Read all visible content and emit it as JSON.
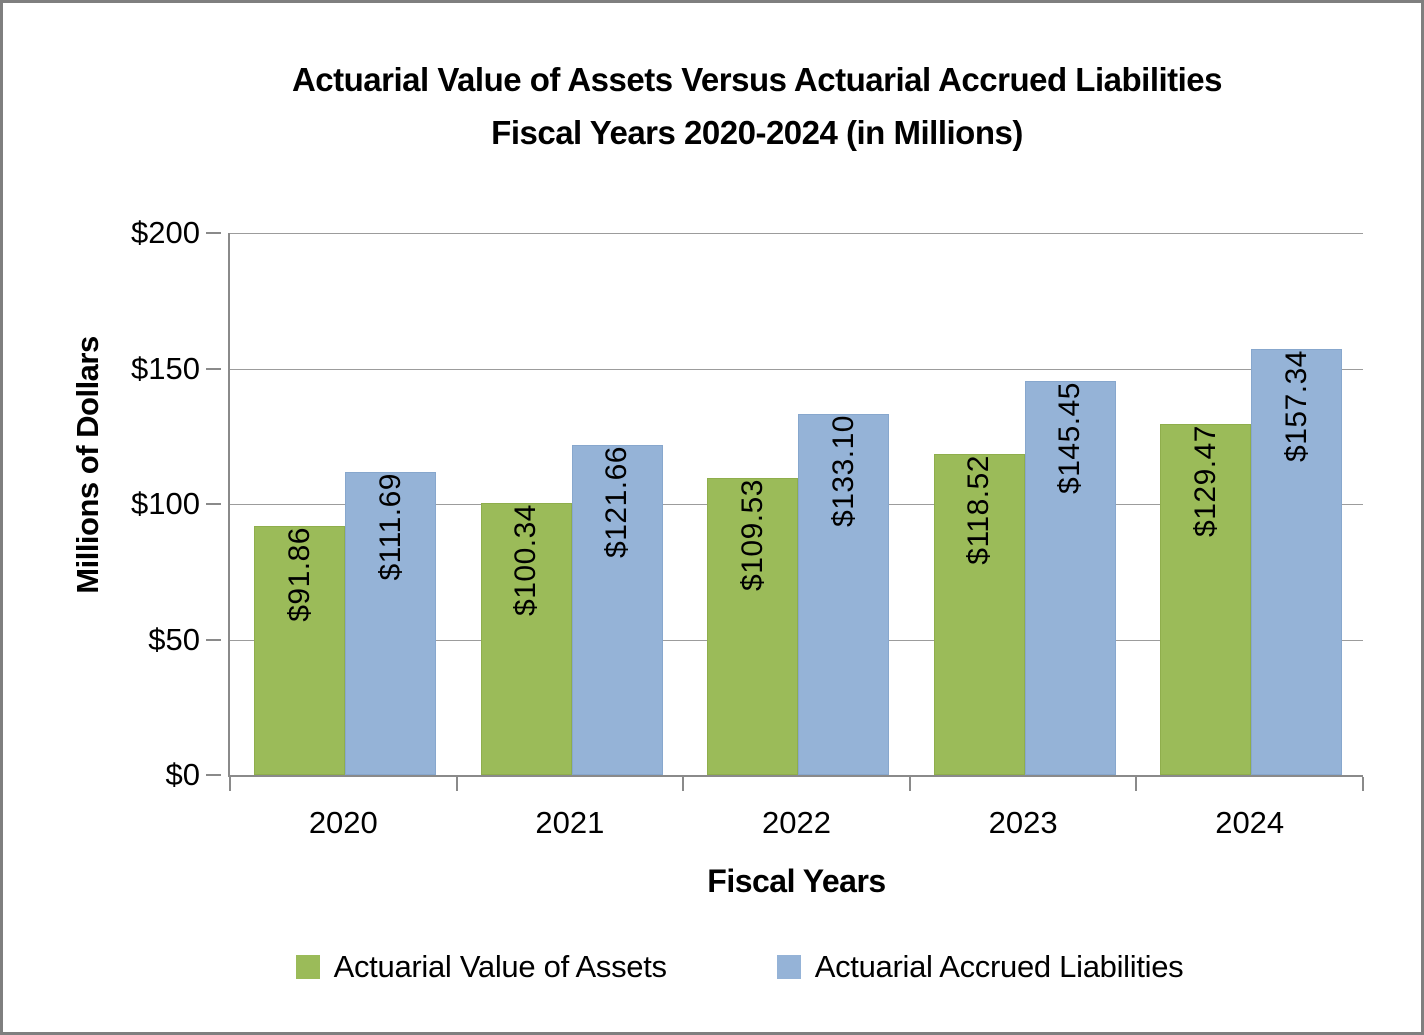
{
  "chart_data": {
    "type": "bar",
    "title_line1": "Actuarial Value of Assets Versus Actuarial Accrued Liabilities",
    "title_line2": "Fiscal Years 2020-2024 (in Millions)",
    "xlabel": "Fiscal Years",
    "ylabel": "Millions of Dollars",
    "categories": [
      "2020",
      "2021",
      "2022",
      "2023",
      "2024"
    ],
    "series": [
      {
        "name": "Actuarial Value of Assets",
        "slug": "assets",
        "color": "#9bbb59",
        "border_color": "#8fae4c",
        "values": [
          91.86,
          100.34,
          109.53,
          118.52,
          129.47
        ],
        "labels": [
          "$91.86",
          "$100.34",
          "$109.53",
          "$118.52",
          "$129.47"
        ]
      },
      {
        "name": "Actuarial Accrued Liabilities",
        "slug": "liabilities",
        "color": "#95b3d7",
        "border_color": "#87a7cd",
        "values": [
          111.69,
          121.66,
          133.1,
          145.45,
          157.34
        ],
        "labels": [
          "$111.69",
          "$121.66",
          "$133.10",
          "$145.45",
          "$157.34"
        ]
      }
    ],
    "ylim": [
      0,
      200
    ],
    "ytick_step": 50,
    "ytick_labels": [
      "$0",
      "$50",
      "$100",
      "$150",
      "$200"
    ],
    "grid": true,
    "legend_position": "bottom",
    "axis_color": "#8a8a8a",
    "gridline_color": "#9c9c9c",
    "frame_border_color": "#7f7f7f",
    "background_color": "#ffffff"
  }
}
